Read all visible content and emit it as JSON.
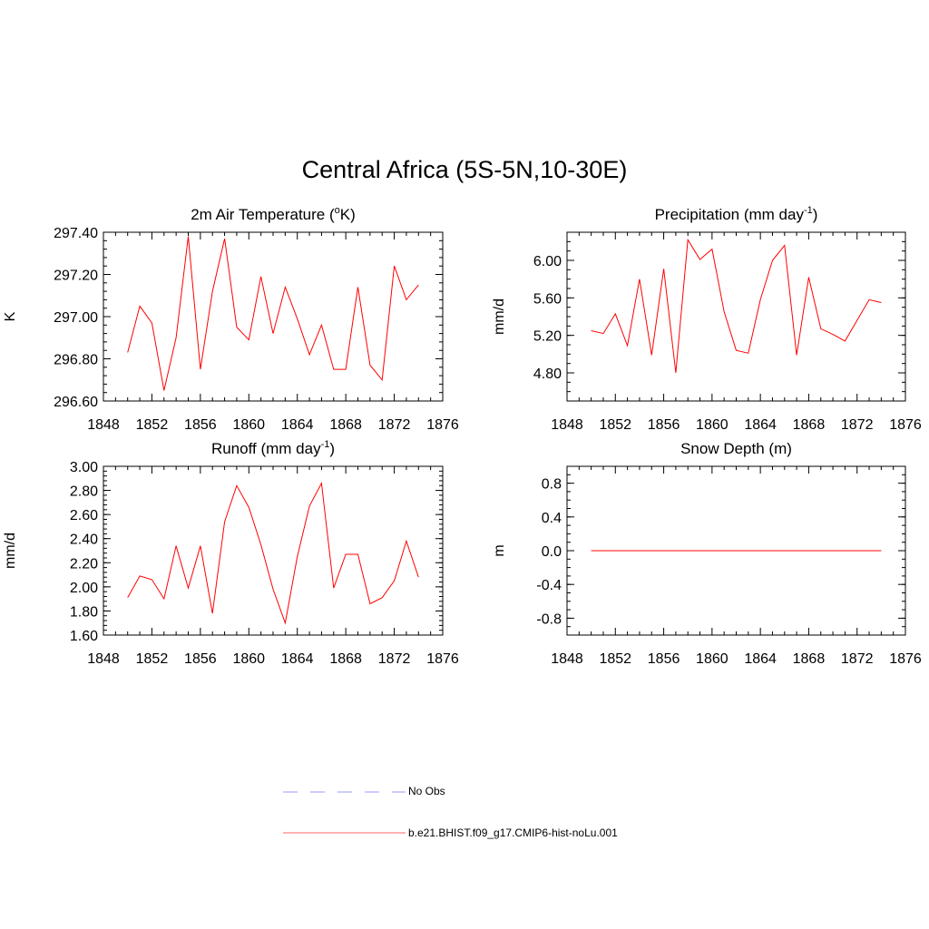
{
  "title": "Central Africa (5S-5N,10-30E)",
  "x_ticks": [
    "1848",
    "1852",
    "1856",
    "1860",
    "1864",
    "1868",
    "1872",
    "1876"
  ],
  "line_color": "#ff0000",
  "legend": [
    {
      "label": "No Obs",
      "color": "#9999ff",
      "style": "dashed"
    },
    {
      "label": "b.e21.BHIST.f09_g17.CMIP6-hist-noLu.001",
      "color": "#ff6666",
      "style": "solid"
    }
  ],
  "chart_data": [
    {
      "type": "line",
      "title_main": "2m Air Temperature (",
      "title_sup_a": "o",
      "title_rest": "K)",
      "ylabel": "K",
      "xlim": [
        1848,
        1876
      ],
      "ylim": [
        296.6,
        297.4
      ],
      "y_ticks": [
        "296.60",
        "296.80",
        "297.00",
        "297.20",
        "297.40"
      ],
      "y_tick_values": [
        296.6,
        296.8,
        297.0,
        297.2,
        297.4
      ],
      "y_minor": 0.04,
      "x": [
        1850,
        1851,
        1852,
        1853,
        1854,
        1855,
        1856,
        1857,
        1858,
        1859,
        1860,
        1861,
        1862,
        1863,
        1864,
        1865,
        1866,
        1867,
        1868,
        1869,
        1870,
        1871,
        1872,
        1873,
        1874
      ],
      "series": [
        {
          "values": [
            296.83,
            297.05,
            296.97,
            296.65,
            296.9,
            297.38,
            296.75,
            297.12,
            297.37,
            296.95,
            296.89,
            297.19,
            296.92,
            297.14,
            296.99,
            296.82,
            296.96,
            296.75,
            296.75,
            297.14,
            296.77,
            296.7,
            297.24,
            297.08,
            297.15
          ]
        }
      ]
    },
    {
      "type": "line",
      "title_main": "Precipitation (mm day",
      "title_sup_a": "-1",
      "title_rest": ")",
      "ylabel": "mm/d",
      "xlim": [
        1848,
        1876
      ],
      "ylim": [
        4.5,
        6.3
      ],
      "y_ticks": [
        "4.80",
        "5.20",
        "5.60",
        "6.00"
      ],
      "y_tick_values": [
        4.8,
        5.2,
        5.6,
        6.0
      ],
      "y_minor": 0.1,
      "x": [
        1850,
        1851,
        1852,
        1853,
        1854,
        1855,
        1856,
        1857,
        1858,
        1859,
        1860,
        1861,
        1862,
        1863,
        1864,
        1865,
        1866,
        1867,
        1868,
        1869,
        1870,
        1871,
        1872,
        1873,
        1874
      ],
      "series": [
        {
          "values": [
            5.25,
            5.22,
            5.43,
            5.09,
            5.8,
            4.99,
            5.91,
            4.8,
            6.22,
            6.01,
            6.12,
            5.45,
            5.04,
            5.01,
            5.58,
            6.0,
            6.16,
            4.99,
            5.82,
            5.27,
            5.21,
            5.14,
            5.36,
            5.58,
            5.55
          ]
        }
      ]
    },
    {
      "type": "line",
      "title_main": "Runoff (mm day",
      "title_sup_a": "-1",
      "title_rest": ")",
      "ylabel": "mm/d",
      "xlim": [
        1848,
        1876
      ],
      "ylim": [
        1.6,
        3.0
      ],
      "y_ticks": [
        "1.60",
        "1.80",
        "2.00",
        "2.20",
        "2.40",
        "2.60",
        "2.80",
        "3.00"
      ],
      "y_tick_values": [
        1.6,
        1.8,
        2.0,
        2.2,
        2.4,
        2.6,
        2.8,
        3.0
      ],
      "y_minor": 0.04,
      "x": [
        1850,
        1851,
        1852,
        1853,
        1854,
        1855,
        1856,
        1857,
        1858,
        1859,
        1860,
        1861,
        1862,
        1863,
        1864,
        1865,
        1866,
        1867,
        1868,
        1869,
        1870,
        1871,
        1872,
        1873,
        1874
      ],
      "series": [
        {
          "values": [
            1.91,
            2.09,
            2.06,
            1.9,
            2.34,
            1.99,
            2.34,
            1.78,
            2.54,
            2.84,
            2.66,
            2.35,
            1.98,
            1.7,
            2.25,
            2.67,
            2.86,
            1.99,
            2.27,
            2.27,
            1.86,
            1.91,
            2.05,
            2.38,
            2.08
          ]
        }
      ]
    },
    {
      "type": "line",
      "title_main": "Snow Depth (m)",
      "title_sup_a": "",
      "title_rest": "",
      "ylabel": "m",
      "xlim": [
        1848,
        1876
      ],
      "ylim": [
        -1.0,
        1.0
      ],
      "y_ticks": [
        "-0.8",
        "-0.4",
        "0.0",
        "0.4",
        "0.8"
      ],
      "y_tick_values": [
        -0.8,
        -0.4,
        0.0,
        0.4,
        0.8
      ],
      "y_minor": 0.1,
      "x": [
        1850,
        1851,
        1852,
        1853,
        1854,
        1855,
        1856,
        1857,
        1858,
        1859,
        1860,
        1861,
        1862,
        1863,
        1864,
        1865,
        1866,
        1867,
        1868,
        1869,
        1870,
        1871,
        1872,
        1873,
        1874
      ],
      "series": [
        {
          "values": [
            0,
            0,
            0,
            0,
            0,
            0,
            0,
            0,
            0,
            0,
            0,
            0,
            0,
            0,
            0,
            0,
            0,
            0,
            0,
            0,
            0,
            0,
            0,
            0,
            0
          ]
        }
      ]
    }
  ]
}
